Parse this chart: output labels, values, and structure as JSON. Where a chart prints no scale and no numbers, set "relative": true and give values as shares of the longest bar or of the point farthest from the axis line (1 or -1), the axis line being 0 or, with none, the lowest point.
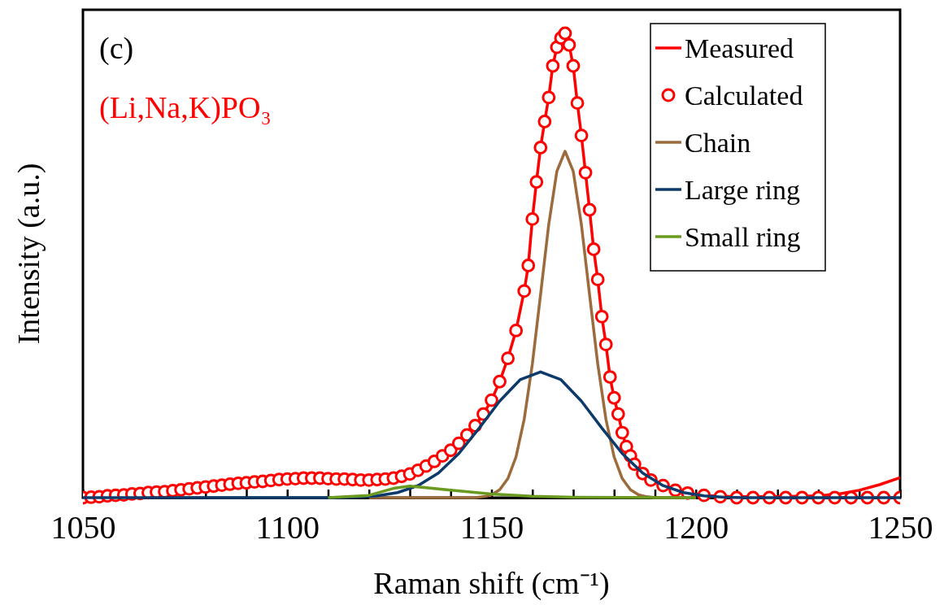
{
  "chart_data": {
    "type": "line",
    "relative": true,
    "xlabel": "Raman shift (cm⁻¹)",
    "ylabel": "Intensity (a.u.)",
    "annotations": [
      "(c)",
      "(Li,Na,K)PO₃"
    ],
    "xlim": [
      1050,
      1250
    ],
    "xticks": [
      1050,
      {
        "value": 1060,
        "label": null
      },
      {
        "value": 1070,
        "label": null
      },
      {
        "value": 1080,
        "label": null
      },
      {
        "value": 1090,
        "label": null
      },
      1100,
      {
        "value": 1110,
        "label": null
      },
      {
        "value": 1120,
        "label": null
      },
      {
        "value": 1130,
        "label": null
      },
      {
        "value": 1140,
        "label": null
      },
      1150,
      {
        "value": 1160,
        "label": null
      },
      {
        "value": 1170,
        "label": null
      },
      {
        "value": 1180,
        "label": null
      },
      {
        "value": 1190,
        "label": null
      },
      1200,
      {
        "value": 1210,
        "label": null
      },
      {
        "value": 1220,
        "label": null
      },
      {
        "value": 1230,
        "label": null
      },
      {
        "value": 1240,
        "label": null
      },
      1250
    ],
    "legend": "top right",
    "grid": false,
    "series": [
      {
        "name": "Measured",
        "color": "#ff0000",
        "x": [
          1050,
          1055,
          1060,
          1065,
          1070,
          1075,
          1080,
          1085,
          1090,
          1095,
          1100,
          1105,
          1110,
          1115,
          1120,
          1124,
          1128,
          1131,
          1134,
          1137,
          1140,
          1142,
          1144,
          1146,
          1148,
          1150,
          1152,
          1154,
          1156,
          1158,
          1159,
          1160,
          1161,
          1162,
          1163,
          1164,
          1165,
          1166,
          1167,
          1168,
          1169,
          1170,
          1171,
          1172,
          1173,
          1174,
          1175,
          1176,
          1177,
          1178,
          1179,
          1180,
          1181,
          1182,
          1183,
          1184,
          1185,
          1187,
          1189,
          1192,
          1195,
          1198,
          1202,
          1206,
          1210,
          1215,
          1220,
          1225,
          1230,
          1235,
          1240,
          1245,
          1250
        ],
        "values": [
          0,
          0.003,
          0.006,
          0.01,
          0.013,
          0.018,
          0.023,
          0.028,
          0.032,
          0.036,
          0.04,
          0.042,
          0.041,
          0.039,
          0.038,
          0.04,
          0.046,
          0.055,
          0.068,
          0.083,
          0.102,
          0.117,
          0.135,
          0.155,
          0.18,
          0.21,
          0.25,
          0.3,
          0.36,
          0.445,
          0.5,
          0.6,
          0.68,
          0.754,
          0.81,
          0.862,
          0.93,
          0.97,
          0.99,
          1.0,
          0.975,
          0.93,
          0.85,
          0.78,
          0.7,
          0.62,
          0.535,
          0.47,
          0.39,
          0.33,
          0.26,
          0.215,
          0.18,
          0.14,
          0.11,
          0.09,
          0.072,
          0.052,
          0.038,
          0.026,
          0.016,
          0.01,
          0.005,
          0.003,
          0.002,
          0.002,
          0.002,
          0.003,
          0.004,
          0.008,
          0.016,
          0.028,
          0.043
        ]
      },
      {
        "name": "Calculated",
        "type": "scatter",
        "marker": "circle",
        "color": "#ff0000",
        "x": [
          1050,
          1052,
          1054,
          1056,
          1058,
          1060,
          1062,
          1064,
          1066,
          1068,
          1070,
          1072,
          1074,
          1076,
          1078,
          1080,
          1082,
          1084,
          1086,
          1088,
          1090,
          1092,
          1094,
          1096,
          1098,
          1100,
          1102,
          1104,
          1106,
          1108,
          1110,
          1112,
          1114,
          1116,
          1118,
          1120,
          1122,
          1124,
          1126,
          1128,
          1130,
          1132,
          1134,
          1136,
          1138,
          1140,
          1142,
          1144,
          1146,
          1148,
          1150,
          1152,
          1154,
          1156,
          1158,
          1159,
          1160,
          1161,
          1162,
          1163,
          1164,
          1165,
          1166,
          1167,
          1168,
          1169,
          1170,
          1171,
          1172,
          1173,
          1174,
          1175,
          1176,
          1177,
          1178,
          1179,
          1180,
          1181,
          1182,
          1183,
          1184,
          1185,
          1187,
          1189,
          1192,
          1195,
          1198,
          1202,
          1206,
          1210,
          1214,
          1218,
          1222,
          1226,
          1230,
          1234,
          1238,
          1242,
          1246,
          1250
        ],
        "values": [
          0,
          0.001,
          0.002,
          0.004,
          0.005,
          0.006,
          0.008,
          0.009,
          0.011,
          0.012,
          0.013,
          0.015,
          0.017,
          0.019,
          0.021,
          0.023,
          0.025,
          0.027,
          0.029,
          0.031,
          0.032,
          0.034,
          0.035,
          0.037,
          0.039,
          0.04,
          0.041,
          0.042,
          0.042,
          0.042,
          0.041,
          0.04,
          0.04,
          0.039,
          0.038,
          0.038,
          0.039,
          0.04,
          0.042,
          0.046,
          0.051,
          0.059,
          0.068,
          0.078,
          0.09,
          0.102,
          0.117,
          0.135,
          0.155,
          0.18,
          0.21,
          0.25,
          0.3,
          0.36,
          0.445,
          0.5,
          0.6,
          0.68,
          0.754,
          0.81,
          0.862,
          0.93,
          0.97,
          0.99,
          1.0,
          0.975,
          0.93,
          0.85,
          0.78,
          0.7,
          0.62,
          0.535,
          0.47,
          0.39,
          0.33,
          0.26,
          0.215,
          0.18,
          0.14,
          0.11,
          0.09,
          0.072,
          0.052,
          0.038,
          0.026,
          0.016,
          0.01,
          0.005,
          0.002,
          0,
          0,
          0,
          0,
          0,
          0,
          0,
          0,
          0,
          0,
          0
        ]
      },
      {
        "name": "Chain",
        "color": "#9c6b3c",
        "x": [
          1120,
          1146,
          1148,
          1150,
          1152,
          1154,
          1156,
          1158,
          1160,
          1162,
          1164,
          1166,
          1168,
          1170,
          1172,
          1174,
          1176,
          1178,
          1180,
          1182,
          1184,
          1186,
          1188,
          1190,
          1200
        ],
        "values": [
          0,
          0,
          0.002,
          0.006,
          0.017,
          0.041,
          0.088,
          0.169,
          0.288,
          0.437,
          0.588,
          0.703,
          0.746,
          0.703,
          0.588,
          0.437,
          0.288,
          0.169,
          0.088,
          0.041,
          0.017,
          0.006,
          0.002,
          0,
          0
        ]
      },
      {
        "name": "Large ring",
        "color": "#0b3a6b",
        "x": [
          1050,
          1100,
          1112,
          1117,
          1122,
          1127,
          1132,
          1137,
          1142,
          1147,
          1152,
          1157,
          1162,
          1167,
          1172,
          1177,
          1182,
          1187,
          1192,
          1197,
          1202,
          1207,
          1212,
          1250
        ],
        "values": [
          0,
          0,
          0,
          0.001,
          0.004,
          0.011,
          0.026,
          0.053,
          0.095,
          0.15,
          0.208,
          0.254,
          0.271,
          0.254,
          0.208,
          0.15,
          0.095,
          0.053,
          0.026,
          0.011,
          0.004,
          0.001,
          0,
          0
        ]
      },
      {
        "name": "Small ring",
        "color": "#6a9a1f",
        "x": [
          1110,
          1120,
          1126,
          1130,
          1140,
          1150,
          1160,
          1170,
          1200
        ],
        "values": [
          0,
          0.005,
          0.02,
          0.025,
          0.016,
          0.008,
          0.003,
          0.001,
          0
        ]
      }
    ]
  }
}
